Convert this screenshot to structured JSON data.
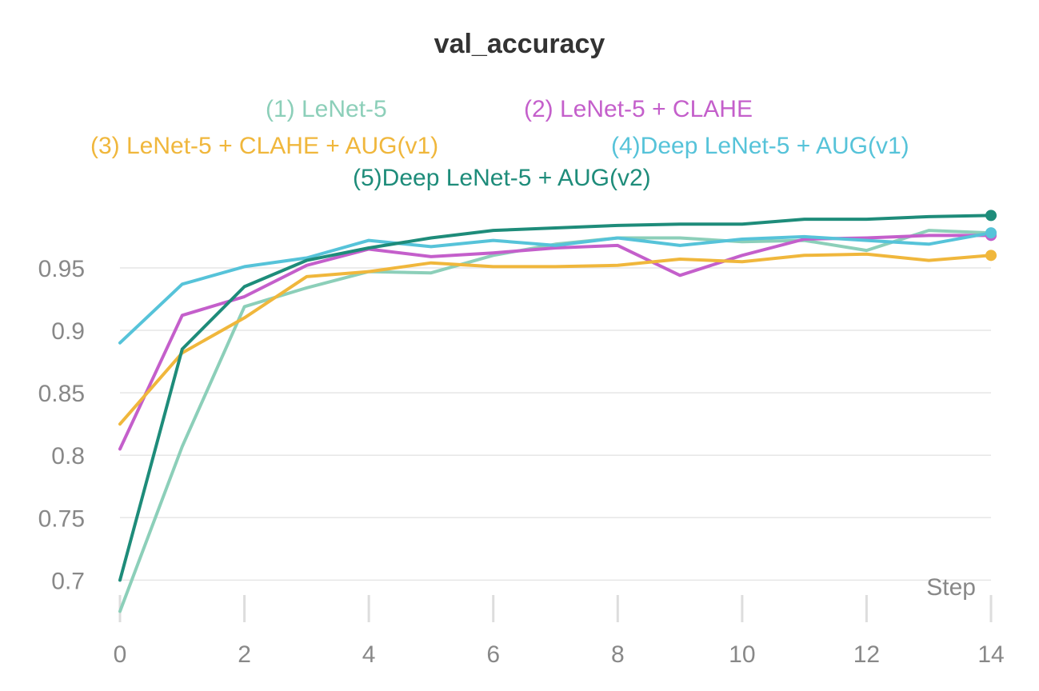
{
  "chart_data": {
    "type": "line",
    "title": "val_accuracy",
    "xlabel": "Step",
    "ylabel": "",
    "x": [
      0,
      1,
      2,
      3,
      4,
      5,
      6,
      7,
      8,
      9,
      10,
      11,
      12,
      13,
      14
    ],
    "xticks": [
      "0",
      "2",
      "4",
      "6",
      "8",
      "10",
      "12",
      "14"
    ],
    "yticks": [
      "0.7",
      "0.75",
      "0.8",
      "0.85",
      "0.9",
      "0.95"
    ],
    "xlim": [
      0,
      14
    ],
    "ylim": [
      0.69,
      0.998
    ],
    "grid": "horizontal",
    "legend_position": "top",
    "series": [
      {
        "name": "(1) LeNet-5",
        "color": "#8ccfb9",
        "values": [
          0.675,
          0.807,
          0.919,
          0.934,
          0.947,
          0.946,
          0.96,
          0.969,
          0.974,
          0.974,
          0.971,
          0.972,
          0.964,
          0.98,
          0.978
        ]
      },
      {
        "name": "(2) LeNet-5 + CLAHE",
        "color": "#c45fcb",
        "values": [
          0.805,
          0.912,
          0.927,
          0.952,
          0.965,
          0.959,
          0.962,
          0.966,
          0.968,
          0.944,
          0.96,
          0.973,
          0.974,
          0.976,
          0.976
        ]
      },
      {
        "name": "(3) LeNet-5 + CLAHE + AUG(v1)",
        "color": "#f0b73c",
        "values": [
          0.825,
          0.882,
          0.91,
          0.943,
          0.947,
          0.954,
          0.951,
          0.951,
          0.952,
          0.957,
          0.955,
          0.96,
          0.961,
          0.956,
          0.96
        ]
      },
      {
        "name": "(4)Deep LeNet-5 + AUG(v1)",
        "color": "#56c3d9",
        "values": [
          0.89,
          0.937,
          0.951,
          0.958,
          0.972,
          0.967,
          0.972,
          0.968,
          0.974,
          0.968,
          0.973,
          0.975,
          0.972,
          0.969,
          0.978
        ]
      },
      {
        "name": "(5)Deep LeNet-5 + AUG(v2)",
        "color": "#1e8c7a",
        "values": [
          0.7,
          0.885,
          0.935,
          0.956,
          0.966,
          0.974,
          0.98,
          0.982,
          0.984,
          0.985,
          0.985,
          0.989,
          0.989,
          0.991,
          0.992
        ]
      }
    ]
  }
}
